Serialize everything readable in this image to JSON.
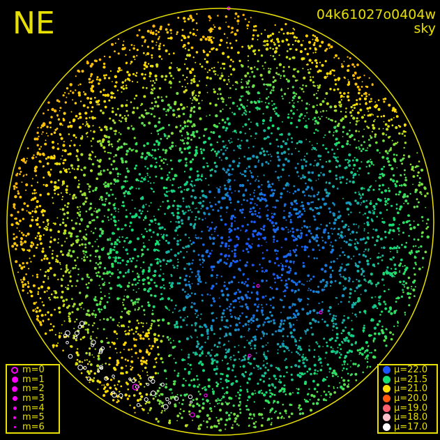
{
  "direction_label": "NE",
  "title": "04k61027o0404w",
  "subtitle": "sky",
  "colors": {
    "frame": "#e8e000",
    "background": "#000000",
    "star_marker": "#ff00ff"
  },
  "chart_data": {
    "type": "scatter",
    "projection": "all-sky circular",
    "magnitude_legend": {
      "position": "bottom-left",
      "entries": [
        "m=0",
        "m=1",
        "m=2",
        "m=3",
        "m=4",
        "m=5",
        "m=6"
      ]
    },
    "brightness_legend": {
      "position": "bottom-right",
      "entries": [
        {
          "label": "μ=22.0",
          "value": 22.0,
          "color": "#1a55ff"
        },
        {
          "label": "μ=21.5",
          "value": 21.5,
          "color": "#16e070"
        },
        {
          "label": "μ=21.0",
          "value": 21.0,
          "color": "#ffe000"
        },
        {
          "label": "μ=20.0",
          "value": 20.0,
          "color": "#ff5a10"
        },
        {
          "label": "μ=19.0",
          "value": 19.0,
          "color": "#ff6070"
        },
        {
          "label": "μ=18.0",
          "value": 18.0,
          "color": "#ffc0cc"
        },
        {
          "label": "μ=17.0",
          "value": 17.0,
          "color": "#ffffff"
        }
      ]
    }
  }
}
